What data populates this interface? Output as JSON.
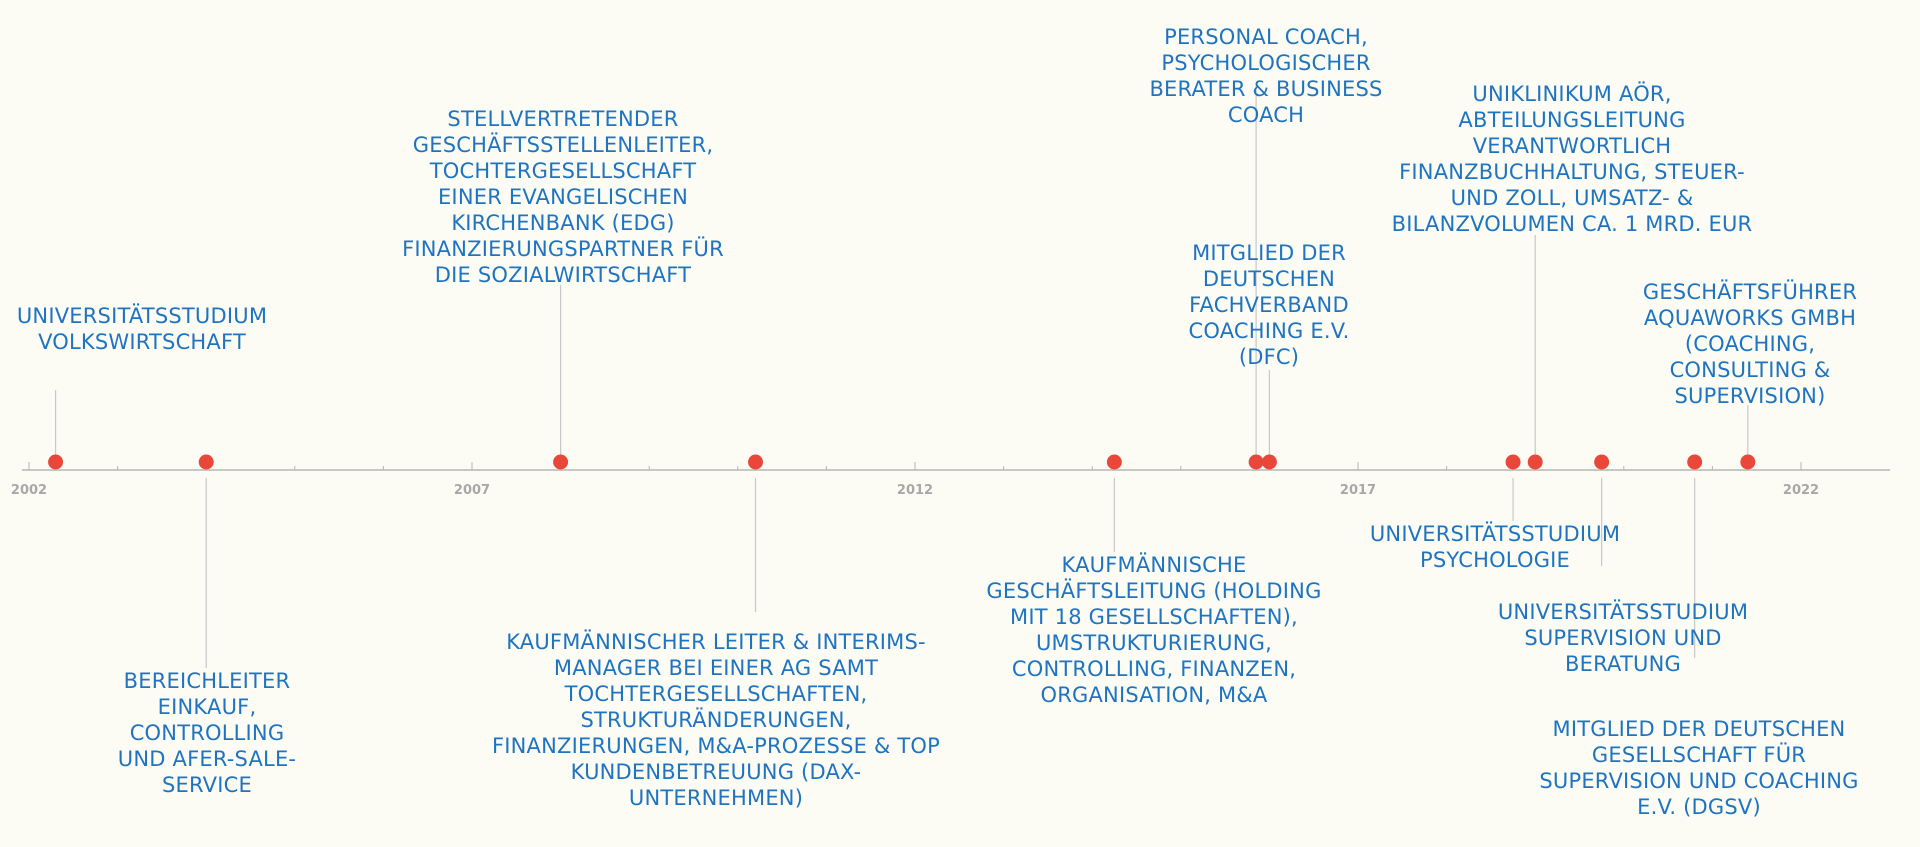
{
  "chart_data": {
    "type": "timeline",
    "axis": {
      "start": 2002,
      "end": 2023,
      "ticks": [
        "2002",
        "2007",
        "2012",
        "2017",
        "2022"
      ]
    },
    "colors": {
      "marker": "#e9473a",
      "label": "#1e74c0",
      "axis": "#b5b5b5",
      "connector": "#c8c8c8"
    },
    "events": [
      {
        "date": 2002.3,
        "side": "above",
        "text": "UNIVERSITÄTSSTUDIUM\nVOLKSWIRTSCHAFT"
      },
      {
        "date": 2004.0,
        "side": "below",
        "text": "BEREICHLEITER\nEINKAUF,\nCONTROLLING\nUND AFER-SALE-\nSERVICE"
      },
      {
        "date": 2008.0,
        "side": "above",
        "text": "STELLVERTRETENDER\nGESCHÄFTSSTELLENLEITER,\nTOCHTERGESELLSCHAFT\nEINER EVANGELISCHEN\nKIRCHENBANK (EDG)\nFINANZIERUNGSPARTNER FÜR\nDIE SOZIALWIRTSCHAFT"
      },
      {
        "date": 2010.2,
        "side": "below",
        "text": "KAUFMÄNNISCHER LEITER & INTERIMS-\nMANAGER BEI EINER AG SAMT\nTOCHTERGESELLSCHAFTEN,\nSTRUKTURÄNDERUNGEN,\nFINANZIERUNGEN, M&A-PROZESSE & TOP\nKUNDENBETREUUNG (DAX-\nUNTERNEHMEN)"
      },
      {
        "date": 2014.25,
        "side": "below",
        "text": "KAUFMÄNNISCHE\nGESCHÄFTSLEITUNG (HOLDING\nMIT 18 GESELLSCHAFTEN),\nUMSTRUKTURIERUNG,\nCONTROLLING, FINANZEN,\nORGANISATION, M&A"
      },
      {
        "date": 2015.85,
        "side": "above",
        "text": "PERSONAL COACH,\nPSYCHOLOGISCHER\nBERATER  & BUSINESS\nCOACH"
      },
      {
        "date": 2016.0,
        "side": "above",
        "text": "MITGLIED DER\nDEUTSCHEN\nFACHVERBAND\nCOACHING E.V.\n(DFC)"
      },
      {
        "date": 2018.75,
        "side": "below",
        "text": "UNIVERSITÄTSSTUDIUM\nPSYCHOLOGIE"
      },
      {
        "date": 2019.0,
        "side": "above",
        "text": "UNIKLINIKUM AÖR,\nABTEILUNGSLEITUNG\nVERANTWORTLICH\nFINANZBUCHHALTUNG, STEUER-\nUND ZOLL, UMSATZ- &\nBILANZVOLUMEN CA. 1 MRD. EUR"
      },
      {
        "date": 2019.75,
        "side": "below",
        "text": "UNIVERSITÄTSSTUDIUM\nSUPERVISION UND\nBERATUNG"
      },
      {
        "date": 2020.8,
        "side": "below",
        "text": "MITGLIED DER DEUTSCHEN\nGESELLSCHAFT FÜR\nSUPERVISION UND COACHING\nE.V. (DGSV)"
      },
      {
        "date": 2021.4,
        "side": "above",
        "text": "GESCHÄFTSFÜHRER\nAQUAWORKS GMBH\n(COACHING,\nCONSULTING &\nSUPERVISION)"
      }
    ]
  }
}
